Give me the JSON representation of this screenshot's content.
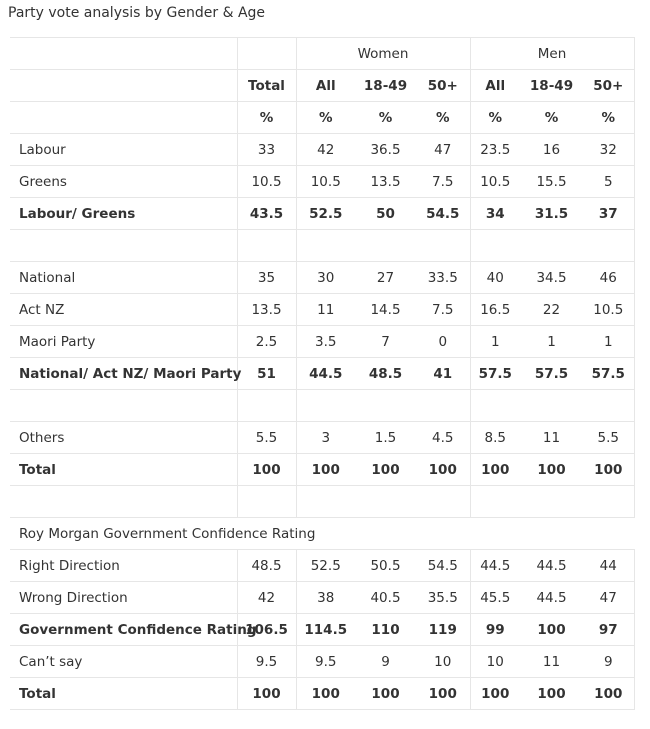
{
  "title": "Party vote analysis by Gender & Age",
  "table": {
    "group_headers": [
      "Women",
      "Men"
    ],
    "columns": [
      "Total",
      "All",
      "18-49",
      "50+",
      "All",
      "18-49",
      "50+"
    ],
    "units": [
      "%",
      "%",
      "%",
      "%",
      "%",
      "%",
      "%"
    ],
    "sections": [
      {
        "rows": [
          {
            "label": "Labour",
            "values": [
              "33",
              "42",
              "36.5",
              "47",
              "23.5",
              "16",
              "32"
            ]
          },
          {
            "label": "Greens",
            "values": [
              "10.5",
              "10.5",
              "13.5",
              "7.5",
              "10.5",
              "15.5",
              "5"
            ]
          },
          {
            "label": "Labour/ Greens",
            "values": [
              "43.5",
              "52.5",
              "50",
              "54.5",
              "34",
              "31.5",
              "37"
            ],
            "bold": true
          }
        ]
      },
      {
        "rows": [
          {
            "label": "National",
            "values": [
              "35",
              "30",
              "27",
              "33.5",
              "40",
              "34.5",
              "46"
            ]
          },
          {
            "label": "Act NZ",
            "values": [
              "13.5",
              "11",
              "14.5",
              "7.5",
              "16.5",
              "22",
              "10.5"
            ]
          },
          {
            "label": "Maori Party",
            "values": [
              "2.5",
              "3.5",
              "7",
              "0",
              "1",
              "1",
              "1"
            ]
          },
          {
            "label": "National/ Act NZ/ Maori Party",
            "values": [
              "51",
              "44.5",
              "48.5",
              "41",
              "57.5",
              "57.5",
              "57.5"
            ],
            "bold": true
          }
        ]
      },
      {
        "rows": [
          {
            "label": "Others",
            "values": [
              "5.5",
              "3",
              "1.5",
              "4.5",
              "8.5",
              "11",
              "5.5"
            ]
          },
          {
            "label": "Total",
            "values": [
              "100",
              "100",
              "100",
              "100",
              "100",
              "100",
              "100"
            ],
            "bold": true
          }
        ]
      },
      {
        "heading": "Roy Morgan Government Confidence Rating",
        "rows": [
          {
            "label": "Right Direction",
            "values": [
              "48.5",
              "52.5",
              "50.5",
              "54.5",
              "44.5",
              "44.5",
              "44"
            ]
          },
          {
            "label": "Wrong Direction",
            "values": [
              "42",
              "38",
              "40.5",
              "35.5",
              "45.5",
              "44.5",
              "47"
            ]
          },
          {
            "label": "Government Confidence Rating",
            "values": [
              "106.5",
              "114.5",
              "110",
              "119",
              "99",
              "100",
              "97"
            ],
            "bold": true
          },
          {
            "label": "Can’t say",
            "values": [
              "9.5",
              "9.5",
              "9",
              "10",
              "10",
              "11",
              "9"
            ]
          },
          {
            "label": "Total",
            "values": [
              "100",
              "100",
              "100",
              "100",
              "100",
              "100",
              "100"
            ],
            "bold": true
          }
        ]
      }
    ]
  }
}
